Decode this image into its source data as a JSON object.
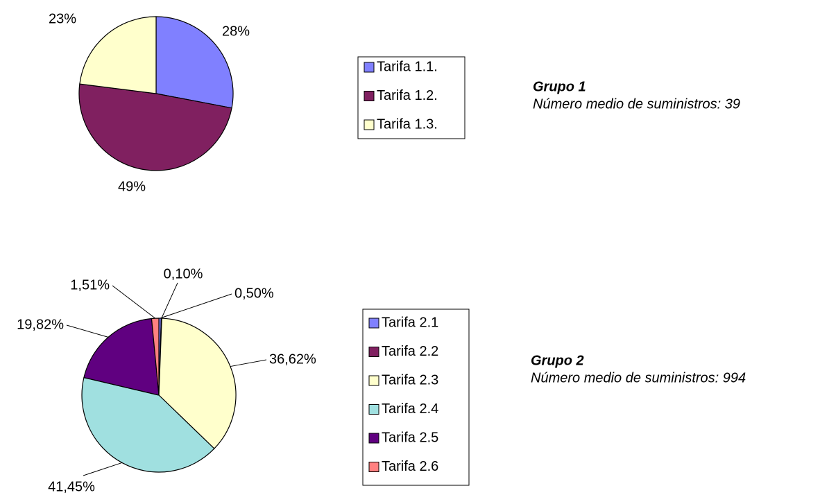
{
  "chart_data": [
    {
      "type": "pie",
      "title": "Grupo 1",
      "subtitle": "Número medio de suministros: 39",
      "categories": [
        "Tarifa 1.1.",
        "Tarifa 1.2.",
        "Tarifa 1.3."
      ],
      "values": [
        28,
        49,
        23
      ],
      "value_labels": [
        "28%",
        "49%",
        "23%"
      ],
      "colors": [
        "#8080ff",
        "#802060",
        "#ffffcc"
      ],
      "legend": "right"
    },
    {
      "type": "pie",
      "title": "Grupo 2",
      "subtitle": "Número medio de suministros: 994",
      "categories": [
        "Tarifa 2.1",
        "Tarifa 2.2",
        "Tarifa 2.3",
        "Tarifa 2.4",
        "Tarifa 2.5",
        "Tarifa 2.6"
      ],
      "values": [
        0.5,
        0.1,
        36.62,
        41.45,
        19.82,
        1.51
      ],
      "value_labels": [
        "0,50%",
        "0,10%",
        "36,62%",
        "41,45%",
        "19,82%",
        "1,51%"
      ],
      "colors": [
        "#8080ff",
        "#802060",
        "#ffffcc",
        "#a0e0e0",
        "#600080",
        "#ff8080"
      ],
      "legend": "right"
    }
  ]
}
